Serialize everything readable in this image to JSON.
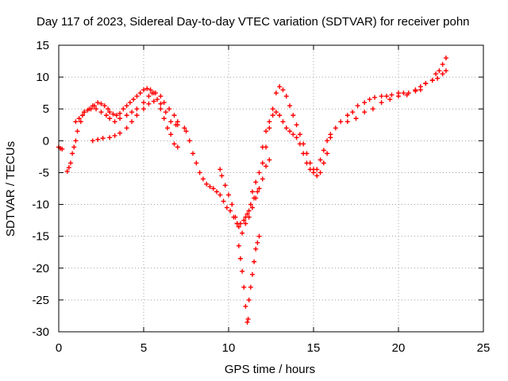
{
  "chart_data": {
    "type": "scatter",
    "title": "Day 117 of 2023, Sidereal Day-to-day VTEC variation (SDTVAR) for receiver pohn",
    "xlabel": "GPS time / hours",
    "ylabel": "SDTVAR / TECUs",
    "xlim": [
      0,
      25
    ],
    "ylim": [
      -30,
      15
    ],
    "xticks": [
      "0",
      "5",
      "10",
      "15",
      "20",
      "25"
    ],
    "yticks": [
      "-30",
      "-25",
      "-20",
      "-15",
      "-10",
      "-5",
      "0",
      "5",
      "10",
      "15"
    ],
    "grid": true,
    "marker": "+",
    "color": "#ff0000",
    "series": [
      {
        "x": [
          0.0,
          0.1,
          0.2,
          0.5,
          0.6,
          0.7,
          0.8,
          0.9,
          1.0,
          1.1,
          1.3,
          1.4,
          1.5,
          1.7,
          1.9,
          2.1,
          2.3,
          2.5,
          2.7,
          2.9,
          3.0,
          3.2,
          3.4,
          3.6,
          3.8,
          4.0,
          4.2,
          4.4,
          4.6,
          4.8,
          5.0,
          5.2,
          5.4,
          5.6,
          5.8,
          6.0,
          6.2,
          6.4,
          6.6,
          6.8,
          7.0
        ],
        "y": [
          -1.0,
          -1.2,
          -1.3,
          -4.8,
          -4.2,
          -3.5,
          -2.0,
          -1.0,
          0.0,
          1.5,
          3.0,
          4.0,
          4.5,
          4.8,
          5.0,
          5.5,
          6.0,
          5.8,
          5.5,
          5.0,
          4.5,
          4.2,
          4.0,
          4.3,
          5.0,
          5.5,
          6.0,
          6.5,
          7.0,
          7.5,
          8.0,
          8.2,
          8.0,
          7.5,
          6.5,
          5.0,
          3.5,
          2.0,
          1.0,
          -0.5,
          -1.0
        ]
      },
      {
        "x": [
          1.0,
          1.2,
          1.5,
          1.8,
          2.0,
          2.2,
          2.5,
          2.8,
          3.0,
          3.3,
          3.6,
          4.0,
          4.3,
          4.6,
          5.0,
          5.3,
          5.5,
          5.7,
          6.0,
          6.2,
          6.5,
          6.8,
          7.0
        ],
        "y": [
          3.0,
          3.5,
          4.5,
          5.0,
          5.5,
          5.0,
          4.5,
          4.0,
          3.5,
          3.0,
          3.5,
          4.0,
          4.5,
          5.0,
          6.0,
          7.0,
          7.5,
          7.5,
          7.0,
          6.0,
          5.0,
          4.0,
          3.0
        ]
      },
      {
        "x": [
          2.0,
          2.3,
          2.6,
          3.0,
          3.3,
          3.6,
          4.0,
          4.3,
          4.6,
          5.0,
          5.3,
          5.6,
          6.0,
          6.3,
          6.6,
          6.9,
          7.0
        ],
        "y": [
          0.0,
          0.2,
          0.4,
          0.5,
          0.8,
          1.2,
          2.0,
          3.0,
          4.0,
          5.0,
          5.8,
          6.2,
          5.8,
          4.5,
          3.0,
          2.5,
          2.5
        ]
      },
      {
        "x": [
          7.4,
          7.5,
          7.7,
          7.9,
          8.1,
          8.3,
          8.5,
          8.7,
          8.9,
          9.1,
          9.3,
          9.5,
          9.7,
          9.9,
          10.1,
          10.3,
          10.5,
          10.7,
          10.9,
          11.0,
          11.1,
          11.2,
          11.3,
          11.5,
          11.7
        ],
        "y": [
          2.0,
          1.5,
          0.0,
          -2.0,
          -3.5,
          -5.0,
          -6.0,
          -6.8,
          -7.2,
          -7.5,
          -8.0,
          -8.5,
          -9.5,
          -10.5,
          -11.0,
          -12.0,
          -13.0,
          -13.0,
          -12.5,
          -12.0,
          -11.5,
          -11.0,
          -10.0,
          -9.0,
          -8.0
        ]
      },
      {
        "x": [
          9.5,
          9.6,
          9.8,
          10.0,
          10.2,
          10.4,
          10.6,
          10.8,
          11.0,
          11.2,
          11.4,
          11.6,
          11.8,
          12.0,
          12.2,
          12.4
        ],
        "y": [
          -4.5,
          -5.5,
          -7.0,
          -8.5,
          -10.0,
          -12.0,
          -13.5,
          -14.5,
          -13.0,
          -12.0,
          -10.5,
          -9.0,
          -7.5,
          -6.0,
          -4.0,
          -3.0
        ]
      },
      {
        "x": [
          10.5,
          10.6,
          10.7,
          10.8,
          10.9,
          11.0,
          11.1,
          11.15,
          11.2,
          11.3,
          11.4,
          11.5,
          11.6,
          11.7,
          11.8
        ],
        "y": [
          -13.0,
          -16.5,
          -18.5,
          -20.5,
          -23.0,
          -26.0,
          -28.5,
          -28.0,
          -25.0,
          -23.0,
          -21.0,
          -19.0,
          -17.0,
          -16.0,
          -15.0
        ]
      },
      {
        "x": [
          11.4,
          11.6,
          11.8,
          12.0,
          12.2,
          12.4,
          12.6,
          12.8,
          13.0,
          13.2,
          13.4,
          13.6,
          13.8,
          14.0,
          14.2,
          14.4,
          14.6,
          14.8,
          15.0,
          15.2,
          15.4,
          15.6,
          15.8,
          16.0
        ],
        "y": [
          -8.0,
          -6.5,
          -5.0,
          -3.5,
          -1.0,
          2.0,
          5.0,
          7.5,
          8.5,
          8.0,
          7.0,
          5.5,
          4.0,
          2.5,
          1.0,
          -0.5,
          -2.0,
          -3.5,
          -4.5,
          -5.5,
          -5.0,
          -3.5,
          -2.0,
          0.5
        ]
      },
      {
        "x": [
          12.0,
          12.2,
          12.4,
          12.6,
          12.8,
          13.0,
          13.2,
          13.4,
          13.6,
          13.8,
          14.0,
          14.2,
          14.4,
          14.6,
          14.8,
          15.0,
          15.2,
          15.4,
          15.6,
          15.8
        ],
        "y": [
          -1.0,
          1.5,
          3.0,
          4.0,
          4.5,
          4.0,
          3.0,
          2.0,
          1.5,
          1.0,
          0.5,
          -0.5,
          -2.0,
          -3.5,
          -4.5,
          -5.0,
          -4.5,
          -3.0,
          -1.5,
          0.0
        ]
      },
      {
        "x": [
          16.0,
          16.3,
          16.6,
          17.0,
          17.3,
          17.6,
          18.0,
          18.3,
          18.6,
          19.0,
          19.3,
          19.6,
          20.0,
          20.3,
          20.6,
          21.0,
          21.3,
          21.6,
          22.0,
          22.2,
          22.4,
          22.6,
          22.8
        ],
        "y": [
          1.0,
          2.0,
          3.0,
          4.0,
          4.5,
          5.5,
          6.0,
          6.5,
          6.8,
          7.0,
          7.0,
          7.2,
          7.5,
          7.5,
          7.5,
          8.0,
          8.5,
          9.0,
          9.5,
          10.5,
          11.0,
          12.0,
          13.0
        ]
      },
      {
        "x": [
          17.0,
          17.5,
          18.0,
          18.5,
          19.0,
          19.5,
          20.0,
          20.5,
          21.0,
          21.3,
          21.6,
          22.0,
          22.3,
          22.6,
          22.8
        ],
        "y": [
          3.0,
          3.5,
          4.5,
          5.0,
          6.0,
          6.5,
          7.0,
          7.2,
          7.8,
          8.0,
          9.0,
          9.5,
          9.8,
          10.5,
          11.0
        ]
      }
    ]
  }
}
